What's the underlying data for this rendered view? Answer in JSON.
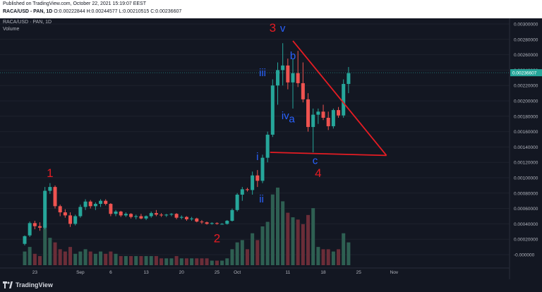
{
  "header": {
    "published": "Published on TradingView.com, October 22, 2021 15:19:07 EEST",
    "symbol": "RACA/USD - PAN, 1D",
    "ohlc": [
      {
        "k": "O:",
        "v": "0.00222844"
      },
      {
        "k": "H:",
        "v": "0.00244577"
      },
      {
        "k": "L:",
        "v": "0.00210515"
      },
      {
        "k": "C:",
        "v": "0.00236607"
      }
    ]
  },
  "legend": {
    "title": "RACA/USD · PAN, 1D",
    "volume": "Volume"
  },
  "footer": {
    "brand": "TradingView"
  },
  "colors": {
    "up": "#26a69a",
    "down": "#ef5350",
    "vol_up": "#2e5f52",
    "vol_down": "#6b2d38",
    "annotation_red": "#e51c23",
    "annotation_blue": "#2962ff",
    "price_badge": "#26a69a"
  },
  "chart_data": {
    "type": "candlestick",
    "price_axis": {
      "ticks": [
        0.003,
        0.0028,
        0.0026,
        0.0024,
        0.0022,
        0.002,
        0.0018,
        0.0016,
        0.0014,
        0.0012,
        0.001,
        0.0008,
        0.0006,
        0.0004,
        0.0002,
        0.0
      ],
      "tick_labels": [
        "0.00300000",
        "0.00280000",
        "0.00260000",
        "0.00240000",
        "0.00220000",
        "0.00200000",
        "0.00180000",
        "0.00160000",
        "0.00140000",
        "0.00120000",
        "0.00100000",
        "0.00080000",
        "0.00060000",
        "0.00040000",
        "0.00020000",
        "-0.000000"
      ],
      "last_price": 0.00236607,
      "last_price_label": "0.00236607"
    },
    "time_axis": {
      "labels": [
        {
          "day": 2,
          "text": "23"
        },
        {
          "day": 11,
          "text": "Sep"
        },
        {
          "day": 17,
          "text": "6"
        },
        {
          "day": 24,
          "text": "13"
        },
        {
          "day": 31,
          "text": "20"
        },
        {
          "day": 38,
          "text": "25"
        },
        {
          "day": 42,
          "text": "Oct"
        },
        {
          "day": 52,
          "text": "11"
        },
        {
          "day": 59,
          "text": "18"
        },
        {
          "day": 66,
          "text": "25"
        },
        {
          "day": 73,
          "text": "Nov"
        }
      ]
    },
    "candles": [
      {
        "o": 0.00014,
        "h": 0.00025,
        "l": 0.00012,
        "c": 0.00024,
        "v": 0.06
      },
      {
        "o": 0.00025,
        "h": 0.00043,
        "l": 0.00023,
        "c": 0.00041,
        "v": 0.08
      },
      {
        "o": 0.00041,
        "h": 0.00044,
        "l": 0.00033,
        "c": 0.00037,
        "v": 0.05
      },
      {
        "o": 0.00037,
        "h": 0.00042,
        "l": 0.00031,
        "c": 0.00035,
        "v": 0.04
      },
      {
        "o": 0.00035,
        "h": 0.00088,
        "l": 0.00033,
        "c": 0.00083,
        "v": 0.18
      },
      {
        "o": 0.00083,
        "h": 0.00093,
        "l": 0.00079,
        "c": 0.00088,
        "v": 0.12
      },
      {
        "o": 0.00088,
        "h": 0.0009,
        "l": 0.0006,
        "c": 0.00063,
        "v": 0.1
      },
      {
        "o": 0.00063,
        "h": 0.00065,
        "l": 0.0005,
        "c": 0.00055,
        "v": 0.07
      },
      {
        "o": 0.00055,
        "h": 0.00059,
        "l": 0.00048,
        "c": 0.00051,
        "v": 0.06
      },
      {
        "o": 0.00051,
        "h": 0.00055,
        "l": 0.00036,
        "c": 0.0004,
        "v": 0.08
      },
      {
        "o": 0.0004,
        "h": 0.00052,
        "l": 0.00038,
        "c": 0.0005,
        "v": 0.05
      },
      {
        "o": 0.0005,
        "h": 0.00065,
        "l": 0.00048,
        "c": 0.00062,
        "v": 0.06
      },
      {
        "o": 0.00062,
        "h": 0.00072,
        "l": 0.00058,
        "c": 0.00069,
        "v": 0.07
      },
      {
        "o": 0.00069,
        "h": 0.00071,
        "l": 0.0006,
        "c": 0.00063,
        "v": 0.06
      },
      {
        "o": 0.00063,
        "h": 0.00068,
        "l": 0.00058,
        "c": 0.00066,
        "v": 0.05
      },
      {
        "o": 0.00066,
        "h": 0.00072,
        "l": 0.00062,
        "c": 0.0007,
        "v": 0.06
      },
      {
        "o": 0.0007,
        "h": 0.00072,
        "l": 0.00064,
        "c": 0.00066,
        "v": 0.05
      },
      {
        "o": 0.00066,
        "h": 0.00067,
        "l": 0.0005,
        "c": 0.00053,
        "v": 0.06
      },
      {
        "o": 0.00053,
        "h": 0.00058,
        "l": 0.0005,
        "c": 0.00056,
        "v": 0.05
      },
      {
        "o": 0.00056,
        "h": 0.00057,
        "l": 0.00049,
        "c": 0.00051,
        "v": 0.04
      },
      {
        "o": 0.00051,
        "h": 0.00055,
        "l": 0.00049,
        "c": 0.00053,
        "v": 0.04
      },
      {
        "o": 0.00053,
        "h": 0.00054,
        "l": 0.00047,
        "c": 0.00049,
        "v": 0.04
      },
      {
        "o": 0.00049,
        "h": 0.00052,
        "l": 0.00046,
        "c": 0.0005,
        "v": 0.04
      },
      {
        "o": 0.0005,
        "h": 0.00053,
        "l": 0.00046,
        "c": 0.00047,
        "v": 0.04
      },
      {
        "o": 0.00047,
        "h": 0.00051,
        "l": 0.00045,
        "c": 0.0005,
        "v": 0.04
      },
      {
        "o": 0.0005,
        "h": 0.00056,
        "l": 0.00048,
        "c": 0.00054,
        "v": 0.04
      },
      {
        "o": 0.00054,
        "h": 0.00058,
        "l": 0.0005,
        "c": 0.00052,
        "v": 0.04
      },
      {
        "o": 0.00052,
        "h": 0.00054,
        "l": 0.00049,
        "c": 0.00051,
        "v": 0.03
      },
      {
        "o": 0.00051,
        "h": 0.00053,
        "l": 0.00049,
        "c": 0.00052,
        "v": 0.03
      },
      {
        "o": 0.00052,
        "h": 0.00054,
        "l": 0.0005,
        "c": 0.00053,
        "v": 0.03
      },
      {
        "o": 0.00053,
        "h": 0.00054,
        "l": 0.00046,
        "c": 0.00048,
        "v": 0.04
      },
      {
        "o": 0.00048,
        "h": 0.00051,
        "l": 0.00046,
        "c": 0.00049,
        "v": 0.03
      },
      {
        "o": 0.00049,
        "h": 0.0005,
        "l": 0.00044,
        "c": 0.00046,
        "v": 0.03
      },
      {
        "o": 0.00046,
        "h": 0.00049,
        "l": 0.00044,
        "c": 0.00047,
        "v": 0.03
      },
      {
        "o": 0.00047,
        "h": 0.00048,
        "l": 0.00042,
        "c": 0.00043,
        "v": 0.03
      },
      {
        "o": 0.00043,
        "h": 0.00045,
        "l": 0.0004,
        "c": 0.00042,
        "v": 0.03
      },
      {
        "o": 0.00042,
        "h": 0.00043,
        "l": 0.00039,
        "c": 0.0004,
        "v": 0.03
      },
      {
        "o": 0.0004,
        "h": 0.00042,
        "l": 0.00039,
        "c": 0.00041,
        "v": 0.02
      },
      {
        "o": 0.00041,
        "h": 0.00042,
        "l": 0.00039,
        "c": 0.0004,
        "v": 0.02
      },
      {
        "o": 0.0004,
        "h": 0.00041,
        "l": 0.00039,
        "c": 0.0004,
        "v": 0.02
      },
      {
        "o": 0.0004,
        "h": 0.00045,
        "l": 0.00039,
        "c": 0.00044,
        "v": 0.03
      },
      {
        "o": 0.00044,
        "h": 0.0006,
        "l": 0.00043,
        "c": 0.00058,
        "v": 0.07
      },
      {
        "o": 0.00058,
        "h": 0.0008,
        "l": 0.00056,
        "c": 0.00078,
        "v": 0.1
      },
      {
        "o": 0.00078,
        "h": 0.00088,
        "l": 0.0007,
        "c": 0.00085,
        "v": 0.11
      },
      {
        "o": 0.00085,
        "h": 0.00087,
        "l": 0.00082,
        "c": 0.00084,
        "v": 0.07
      },
      {
        "o": 0.00084,
        "h": 0.00108,
        "l": 0.00078,
        "c": 0.00103,
        "v": 0.14
      },
      {
        "o": 0.00103,
        "h": 0.0011,
        "l": 0.00088,
        "c": 0.00096,
        "v": 0.11
      },
      {
        "o": 0.00096,
        "h": 0.0013,
        "l": 0.00093,
        "c": 0.00126,
        "v": 0.17
      },
      {
        "o": 0.00126,
        "h": 0.0016,
        "l": 0.0012,
        "c": 0.00156,
        "v": 0.19
      },
      {
        "o": 0.00156,
        "h": 0.00228,
        "l": 0.00153,
        "c": 0.0022,
        "v": 0.31
      },
      {
        "o": 0.0022,
        "h": 0.0025,
        "l": 0.00195,
        "c": 0.0024,
        "v": 0.34
      },
      {
        "o": 0.0024,
        "h": 0.00275,
        "l": 0.0022,
        "c": 0.00246,
        "v": 0.28
      },
      {
        "o": 0.00246,
        "h": 0.00255,
        "l": 0.00215,
        "c": 0.00224,
        "v": 0.23
      },
      {
        "o": 0.00224,
        "h": 0.00255,
        "l": 0.0019,
        "c": 0.00236,
        "v": 0.21
      },
      {
        "o": 0.00236,
        "h": 0.00265,
        "l": 0.00218,
        "c": 0.00223,
        "v": 0.2
      },
      {
        "o": 0.00223,
        "h": 0.0025,
        "l": 0.00198,
        "c": 0.00202,
        "v": 0.18
      },
      {
        "o": 0.00202,
        "h": 0.0021,
        "l": 0.0016,
        "c": 0.00166,
        "v": 0.22
      },
      {
        "o": 0.00166,
        "h": 0.0019,
        "l": 0.00133,
        "c": 0.00182,
        "v": 0.25
      },
      {
        "o": 0.00182,
        "h": 0.0019,
        "l": 0.0017,
        "c": 0.00186,
        "v": 0.08
      },
      {
        "o": 0.00186,
        "h": 0.00195,
        "l": 0.00175,
        "c": 0.00178,
        "v": 0.07
      },
      {
        "o": 0.00178,
        "h": 0.00186,
        "l": 0.00162,
        "c": 0.00167,
        "v": 0.07
      },
      {
        "o": 0.00167,
        "h": 0.0019,
        "l": 0.00164,
        "c": 0.00188,
        "v": 0.06
      },
      {
        "o": 0.00188,
        "h": 0.00192,
        "l": 0.00178,
        "c": 0.00181,
        "v": 0.07
      },
      {
        "o": 0.00181,
        "h": 0.00228,
        "l": 0.00178,
        "c": 0.00222,
        "v": 0.14
      },
      {
        "o": 0.00222,
        "h": 0.00244,
        "l": 0.0021,
        "c": 0.00236,
        "v": 0.1
      }
    ],
    "annotations": [
      {
        "text": "1",
        "color": "red",
        "day": 5,
        "price": 0.00101
      },
      {
        "text": "2",
        "color": "red",
        "day": 38,
        "price": 0.00016
      },
      {
        "text": "3",
        "color": "red",
        "day": 49,
        "price": 0.0029
      },
      {
        "text": "4",
        "color": "red",
        "day": 58,
        "price": 0.00101
      },
      {
        "text": "v",
        "color": "blue",
        "day": 51,
        "price": 0.0029
      },
      {
        "text": "b",
        "color": "blue",
        "day": 53,
        "price": 0.00254
      },
      {
        "text": "iii",
        "color": "blue",
        "day": 47,
        "price": 0.00232
      },
      {
        "text": "iv",
        "color": "blue",
        "day": 51.5,
        "price": 0.00176
      },
      {
        "text": "a",
        "color": "blue",
        "day": 52.8,
        "price": 0.00172
      },
      {
        "text": "c",
        "color": "blue",
        "day": 57.4,
        "price": 0.00118
      },
      {
        "text": "i",
        "color": "blue",
        "day": 46,
        "price": 0.00123
      },
      {
        "text": "ii",
        "color": "blue",
        "day": 46.8,
        "price": 0.00068
      }
    ],
    "triangle": [
      {
        "day": 53,
        "price": 0.00278
      },
      {
        "day": 71.5,
        "price": 0.00129
      },
      {
        "day": 48.5,
        "price": 0.00133
      }
    ]
  }
}
